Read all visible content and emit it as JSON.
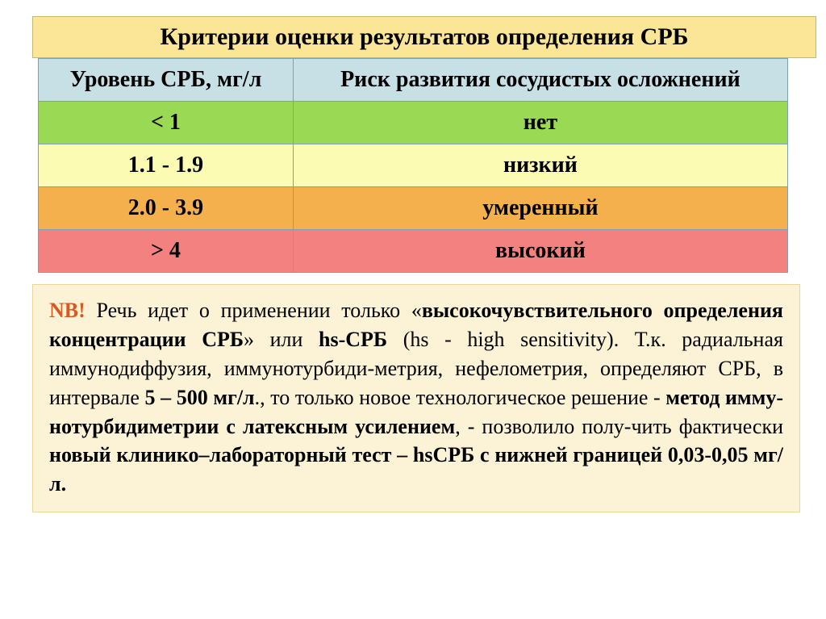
{
  "title": "Критерии оценки результатов определения СРБ",
  "table": {
    "header": {
      "level": "Уровень СРБ, мг/л",
      "risk": "Риск развития сосудистых осложнений"
    },
    "rows": [
      {
        "level": "< 1",
        "risk": "нет",
        "rowclass": "row-green"
      },
      {
        "level": "1.1 - 1.9",
        "risk": "низкий",
        "rowclass": "row-yellow"
      },
      {
        "level": "2.0 - 3.9",
        "risk": "умеренный",
        "rowclass": "row-orange"
      },
      {
        "level": "> 4",
        "risk": "высокий",
        "rowclass": "row-red"
      }
    ]
  },
  "note": {
    "nb": "NB!",
    "t1": " Речь идет о применении только «",
    "b1": "высокочувствительного определения концентрации СРБ",
    "t2": "»  или ",
    "b2": "hs-СРБ",
    "t3": " (hs - high sensitivity). Т.к. радиальная иммунодиффузия, иммунотурбиди-метрия, нефелометрия, определяют СРБ, в интервале ",
    "b3": "5 – 500 мг/л",
    "t4": "., то только новое технологическое решение - ",
    "b4": "метод имму-нотурбидиметрии с латексным усилением",
    "t5": ", - позволило полу-чить фактически ",
    "b5": "новый клинико–лабораторный тест – hsСРБ с нижней границей 0,03-0,05 мг/л."
  },
  "colors": {
    "title_bg": "#fbe697",
    "header_bg": "#c6e0e6",
    "green": "#9ad954",
    "yellow": "#fbfbb4",
    "orange": "#f5b04e",
    "red": "#f2817f",
    "note_bg": "#fcf3d6",
    "nb_color": "#d65a1f",
    "border": "#7ea0b0"
  }
}
